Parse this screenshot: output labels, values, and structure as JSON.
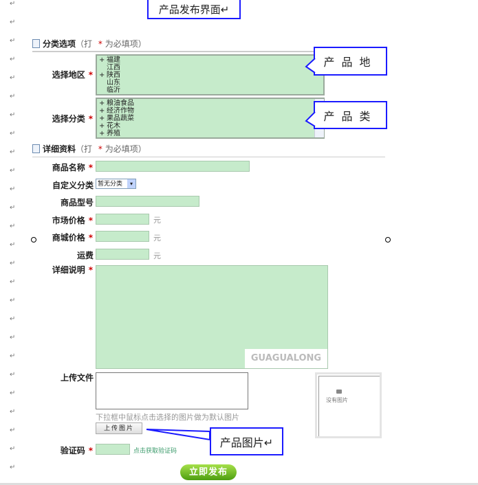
{
  "title": "产品发布界面↵",
  "return_mark": "↵",
  "section1": {
    "title": "分类选项",
    "note_prefix": "（打",
    "star": "*",
    "note_suffix": "为必填项）"
  },
  "region": {
    "label": "选择地区",
    "items": [
      {
        "prefix": "+",
        "text": "福建"
      },
      {
        "prefix": "",
        "text": "江西"
      },
      {
        "prefix": "+",
        "text": "陕西"
      },
      {
        "prefix": "",
        "text": "山东"
      },
      {
        "prefix": "",
        "text": "临沂"
      }
    ]
  },
  "category": {
    "label": "选择分类",
    "items": [
      {
        "prefix": "+",
        "text": "粮油食品"
      },
      {
        "prefix": "+",
        "text": "经济作物"
      },
      {
        "prefix": "+",
        "text": "果品蔬菜"
      },
      {
        "prefix": "+",
        "text": "花木"
      },
      {
        "prefix": "+",
        "text": "养殖"
      }
    ]
  },
  "callouts": {
    "origin": "产品地",
    "category": "产品类",
    "image": "产品图片↵"
  },
  "section2": {
    "title": "详细资料",
    "note_prefix": "（打",
    "star": "*",
    "note_suffix": "为必填项）"
  },
  "fields": {
    "name": "商品名称",
    "custom_cat": "自定义分类",
    "custom_cat_value": "暂无分类",
    "model": "商品型号",
    "market_price": "市场价格",
    "mall_price": "商城价格",
    "shipping": "运费",
    "unit": "元",
    "description": "详细说明",
    "watermark": "GUAGUALONG",
    "upload": "上传文件",
    "upload_hint": "下拉框中鼠标点击选择的图片做为默认图片",
    "upload_button": "上传图片",
    "no_image": "没有图片",
    "captcha": "验证码",
    "captcha_link": "点击获取验证码",
    "star": "*"
  },
  "submit": "立即发布"
}
